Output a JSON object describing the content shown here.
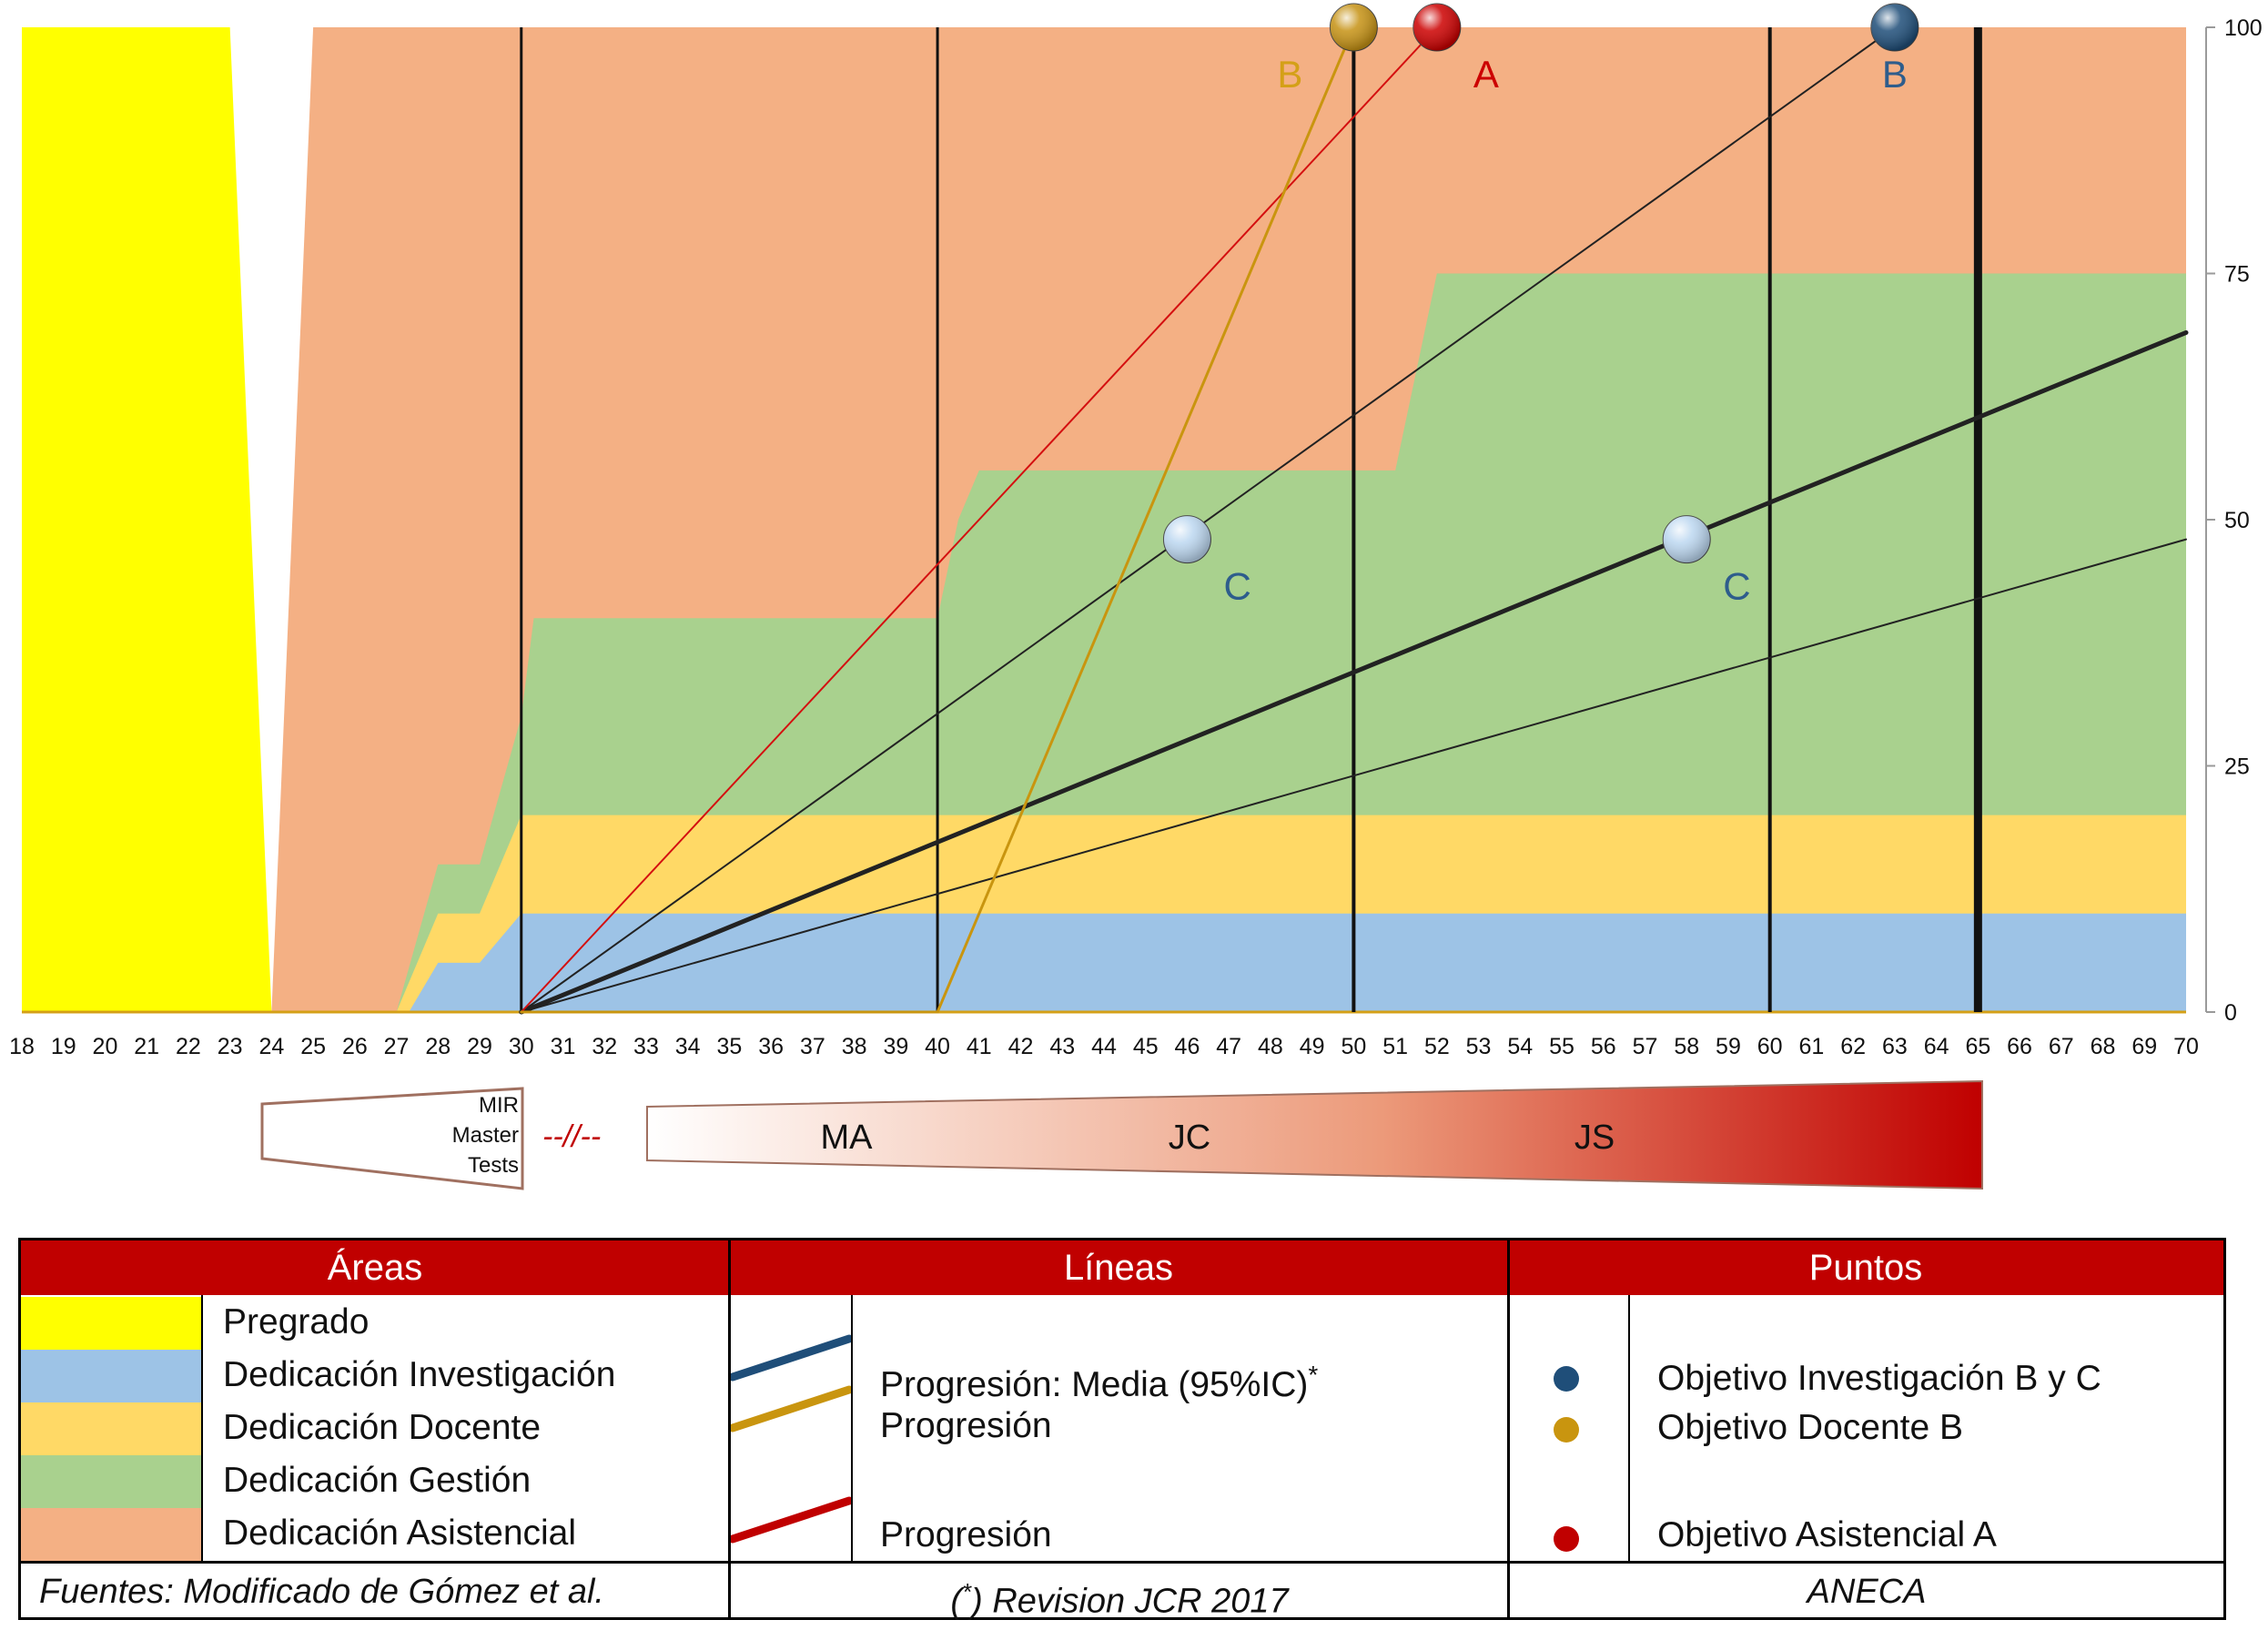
{
  "chart_data": {
    "type": "area",
    "x_ticks": [
      18,
      19,
      20,
      21,
      22,
      23,
      24,
      25,
      26,
      27,
      28,
      29,
      30,
      31,
      32,
      33,
      34,
      35,
      36,
      37,
      38,
      39,
      40,
      41,
      42,
      43,
      44,
      45,
      46,
      47,
      48,
      49,
      50,
      51,
      52,
      53,
      54,
      55,
      56,
      57,
      58,
      59,
      60,
      61,
      62,
      63,
      64,
      65,
      66,
      67,
      68,
      69,
      70
    ],
    "y_ticks": [
      0,
      25,
      50,
      75,
      100
    ],
    "ylim": [
      0,
      100
    ],
    "xlim": [
      18,
      70
    ],
    "areas": [
      {
        "name": "Dedicación Asistencial",
        "color": "#f4b084",
        "points": [
          [
            24,
            0
          ],
          [
            25,
            100
          ],
          [
            70,
            100
          ],
          [
            70,
            0
          ]
        ]
      },
      {
        "name": "Dedicación Gestión",
        "color": "#a9d18e",
        "points": [
          [
            27,
            0
          ],
          [
            28,
            15
          ],
          [
            29,
            15
          ],
          [
            30,
            30
          ],
          [
            30.3,
            40
          ],
          [
            40,
            40
          ],
          [
            40.5,
            50
          ],
          [
            41,
            55
          ],
          [
            51,
            55
          ],
          [
            52,
            75
          ],
          [
            70,
            75
          ],
          [
            70,
            0
          ]
        ]
      },
      {
        "name": "Dedicación Docente",
        "color": "#ffd966",
        "points": [
          [
            27,
            0
          ],
          [
            28,
            10
          ],
          [
            29,
            10
          ],
          [
            30,
            20
          ],
          [
            70,
            20
          ],
          [
            70,
            0
          ]
        ]
      },
      {
        "name": "Dedicación Investigación",
        "color": "#9dc3e6",
        "points": [
          [
            27.3,
            0
          ],
          [
            28,
            5
          ],
          [
            29,
            5
          ],
          [
            30,
            10
          ],
          [
            70,
            10
          ],
          [
            70,
            0
          ]
        ]
      },
      {
        "name": "Pregrado",
        "color": "#ffff00",
        "points": [
          [
            18,
            0
          ],
          [
            18,
            100
          ],
          [
            23,
            100
          ],
          [
            24,
            0
          ]
        ]
      }
    ],
    "lines": [
      {
        "color": "#222222",
        "width": 2,
        "from": [
          30,
          0
        ],
        "to": [
          63,
          100
        ]
      },
      {
        "color": "#222222",
        "width": 5,
        "from": [
          30,
          0
        ],
        "to": [
          70,
          69
        ]
      },
      {
        "color": "#222222",
        "width": 2,
        "from": [
          30,
          0
        ],
        "to": [
          70,
          48
        ]
      },
      {
        "color": "#d41010",
        "width": 2,
        "from": [
          30,
          0
        ],
        "to": [
          52,
          100
        ]
      },
      {
        "color": "#c9950f",
        "width": 3,
        "from": [
          30,
          0
        ],
        "to": [
          40,
          0
        ]
      },
      {
        "color": "#c9950f",
        "width": 3,
        "from": [
          40,
          0
        ],
        "to": [
          50,
          100
        ]
      }
    ],
    "vertical_lines": [
      {
        "x": 30,
        "width": 3
      },
      {
        "x": 40,
        "width": 3
      },
      {
        "x": 50,
        "width": 4
      },
      {
        "x": 60,
        "width": 4
      },
      {
        "x": 65,
        "width": 9
      }
    ],
    "points": [
      {
        "x": 50,
        "y": 100,
        "color": "#c69214",
        "label": "B",
        "label_color": "#d4a017",
        "label_side": "left"
      },
      {
        "x": 52,
        "y": 100,
        "color": "#cc0000",
        "label": "A",
        "label_color": "#cc0000",
        "label_side": "right"
      },
      {
        "x": 63,
        "y": 100,
        "color": "#1f4e79",
        "label": "B",
        "label_color": "#2e5d8c",
        "label_side": "below"
      },
      {
        "x": 46,
        "y": 48,
        "color": "#bcd7f0",
        "label": "C",
        "label_color": "#2e5d8c",
        "label_side": "right"
      },
      {
        "x": 58,
        "y": 48,
        "color": "#bcd7f0",
        "label": "C",
        "label_color": "#2e5d8c",
        "label_side": "right"
      }
    ]
  },
  "stages": {
    "early_lines": [
      "MIR",
      "Master",
      "Tests"
    ],
    "separator": "--//--",
    "labels": [
      "MA",
      "JC",
      "JS"
    ]
  },
  "legend": {
    "headers": {
      "areas": "Áreas",
      "lineas": "Líneas",
      "puntos": "Puntos"
    },
    "areas": [
      {
        "label": "Pregrado",
        "color": "#ffff00"
      },
      {
        "label": "Dedicación Investigación",
        "color": "#9dc3e6"
      },
      {
        "label": "Dedicación Docente",
        "color": "#ffd966"
      },
      {
        "label": "Dedicación Gestión",
        "color": "#a9d18e"
      },
      {
        "label": "Dedicación Asistencial",
        "color": "#f4b084"
      }
    ],
    "lines": [
      {
        "label": "Progresión: Media (95%IC)",
        "sup": "*",
        "color": "#1f4e79"
      },
      {
        "label": "Progresión",
        "color": "#c9950f"
      },
      {
        "label": "Progresión",
        "color": "#c00000"
      }
    ],
    "points": [
      {
        "label": "Objetivo Investigación B y C",
        "color": "#1f4e79"
      },
      {
        "label": "Objetivo Docente B",
        "color": "#c9950f"
      },
      {
        "label": "Objetivo Asistencial A",
        "color": "#c00000"
      }
    ],
    "footer": {
      "areas": "Fuentes: Modificado de Gómez et al.",
      "lineas_prefix": "(",
      "lineas_sup": "*",
      "lineas_rest": ") Revision JCR 2017",
      "puntos": "ANECA"
    }
  }
}
